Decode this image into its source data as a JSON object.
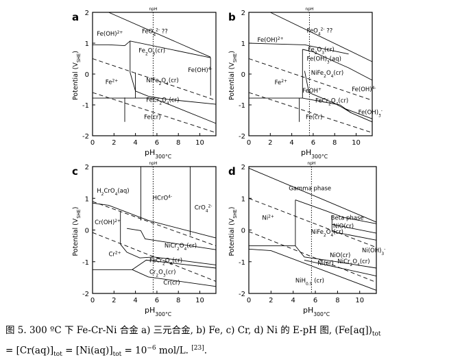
{
  "chart_data": [
    {
      "type": "line",
      "panel_label": "a",
      "xlabel": "pH",
      "xlabel_sub": "300°C",
      "ylabel": "Potential (V",
      "ylabel_sub": "SHE",
      "ylabel_tail": ")",
      "xlim": [
        0,
        11.5
      ],
      "ylim": [
        -2,
        2
      ],
      "xticks": [
        0,
        2,
        4,
        6,
        8,
        10
      ],
      "yticks": [
        -2,
        -1,
        0,
        1,
        2
      ],
      "vline": {
        "x": 5.65,
        "label": "npH"
      },
      "series": [
        {
          "style": "dashed",
          "points": [
            [
              0,
              0.5
            ],
            [
              11.5,
              -0.85
            ]
          ]
        },
        {
          "style": "dashed",
          "points": [
            [
              0,
              -0.6
            ],
            [
              11.5,
              -1.9
            ]
          ]
        },
        {
          "style": "solid",
          "points": [
            [
              1.5,
              2
            ],
            [
              11,
              0.55
            ]
          ]
        },
        {
          "style": "solid",
          "points": [
            [
              0,
              0.95
            ],
            [
              1.5,
              0.95
            ],
            [
              3,
              0.92
            ],
            [
              3.5,
              1.07
            ],
            [
              11,
              0.53
            ]
          ]
        },
        {
          "style": "solid",
          "points": [
            [
              3.5,
              1.07
            ],
            [
              3.5,
              0.05
            ],
            [
              4,
              -0.55
            ],
            [
              5.2,
              -0.72
            ],
            [
              7,
              -0.82
            ],
            [
              11.5,
              -0.98
            ]
          ]
        },
        {
          "style": "solid",
          "points": [
            [
              0,
              -0.78
            ],
            [
              5.6,
              -0.78
            ],
            [
              7,
              -0.97
            ],
            [
              11.5,
              -1.6
            ]
          ]
        },
        {
          "style": "solid",
          "points": [
            [
              4,
              0.05
            ],
            [
              4,
              -0.78
            ]
          ]
        },
        {
          "style": "solid",
          "points": [
            [
              3,
              -0.76
            ],
            [
              3,
              -1.55
            ]
          ]
        },
        {
          "style": "solid",
          "points": [
            [
              11,
              0.53
            ],
            [
              11,
              -0.7
            ]
          ]
        }
      ],
      "labels": [
        {
          "text": "Fe(OH)",
          "sub": "",
          "sup": "2+",
          "pre": "",
          "x": 0.4,
          "y": 1.25
        },
        {
          "text": "FeO",
          "sub": "4",
          "sup": "2-",
          "post": " ??",
          "x": 4.6,
          "y": 1.32
        },
        {
          "text": "Fe",
          "sub": "2",
          "mid": "O",
          "sub2": "3",
          "post": "(cr)",
          "x": 4.3,
          "y": 0.7
        },
        {
          "text": "Fe(OH)",
          "sub": "",
          "sup": "4-",
          "x": 8.9,
          "y": 0.07
        },
        {
          "text": "Fe",
          "sup": "2+",
          "x": 1.2,
          "y": -0.32
        },
        {
          "text": "NiFe",
          "sub": "2",
          "mid": "O",
          "sub2": "4",
          "post": "(cr)",
          "x": 5.0,
          "y": -0.27
        },
        {
          "text": "FeCr",
          "sub": "2",
          "mid": "O",
          "sub2": "4",
          "post": "(cr)",
          "x": 5.0,
          "y": -0.9
        },
        {
          "text": "Fe(cr)",
          "x": 4.8,
          "y": -1.45
        }
      ]
    },
    {
      "type": "line",
      "panel_label": "b",
      "xlabel": "pH",
      "xlabel_sub": "300°C",
      "ylabel": "Potential (V",
      "ylabel_sub": "SHE",
      "ylabel_tail": ")",
      "xlim": [
        0,
        11.5
      ],
      "ylim": [
        -2,
        2
      ],
      "xticks": [
        0,
        2,
        4,
        6,
        8,
        10
      ],
      "yticks": [
        -2,
        -1,
        0,
        1,
        2
      ],
      "vline": {
        "x": 5.65,
        "label": "npH"
      },
      "series": [
        {
          "style": "dashed",
          "points": [
            [
              0,
              0.5
            ],
            [
              11.5,
              -0.85
            ]
          ]
        },
        {
          "style": "dashed",
          "points": [
            [
              0,
              -0.6
            ],
            [
              11.5,
              -1.9
            ]
          ]
        },
        {
          "style": "solid",
          "points": [
            [
              2,
              2
            ],
            [
              11.5,
              0.4
            ]
          ]
        },
        {
          "style": "solid",
          "points": [
            [
              0,
              1.0
            ],
            [
              5,
              0.95
            ],
            [
              5.2,
              0.95
            ],
            [
              9.3,
              0.65
            ]
          ]
        },
        {
          "style": "solid",
          "points": [
            [
              5,
              0.8
            ],
            [
              5,
              -0.78
            ]
          ]
        },
        {
          "style": "solid",
          "points": [
            [
              5,
              0.8
            ],
            [
              6,
              0.72
            ],
            [
              8,
              0.4
            ],
            [
              9.3,
              0.2
            ],
            [
              11.5,
              -0.2
            ]
          ]
        },
        {
          "style": "solid",
          "points": [
            [
              5.2,
              0.1
            ],
            [
              5.6,
              -0.6
            ],
            [
              8,
              -0.95
            ],
            [
              8.8,
              -1.1
            ],
            [
              11.5,
              -1.45
            ]
          ]
        },
        {
          "style": "solid",
          "points": [
            [
              0,
              -0.78
            ],
            [
              5,
              -0.78
            ],
            [
              8.5,
              -1.0
            ],
            [
              9.5,
              -1.25
            ],
            [
              11.5,
              -1.55
            ]
          ]
        },
        {
          "style": "solid",
          "points": [
            [
              8.8,
              -1.1
            ],
            [
              9.5,
              -1.25
            ]
          ]
        },
        {
          "style": "solid",
          "points": [
            [
              4.7,
              -0.78
            ],
            [
              4.7,
              -1.55
            ]
          ]
        }
      ],
      "labels": [
        {
          "text": "FeO",
          "sub": "4",
          "sup": "2-",
          "post": " ??",
          "x": 5.4,
          "y": 1.35
        },
        {
          "text": "Fe(OH)",
          "sup": "2+",
          "x": 0.8,
          "y": 1.05
        },
        {
          "text": "Fe",
          "sub": "2",
          "mid": "O",
          "sub2": "3",
          "post": "(cr)",
          "x": 5.5,
          "y": 0.73
        },
        {
          "text": "Fe(OH)",
          "sub": "3",
          "post": "(aq)",
          "x": 5.4,
          "y": 0.43
        },
        {
          "text": "NiFe",
          "sub": "2",
          "mid": "O",
          "sub2": "4",
          "post": "(cr)",
          "x": 5.8,
          "y": -0.02
        },
        {
          "text": "Fe",
          "sup": "2+",
          "x": 2.4,
          "y": -0.33
        },
        {
          "text": "Fe(OH)",
          "sup": "4-",
          "x": 9.6,
          "y": -0.55
        },
        {
          "text": "FeOH",
          "sup": "+",
          "x": 5.0,
          "y": -0.6
        },
        {
          "text": "FeCr",
          "sub": "2",
          "mid": "O",
          "sub2": "4",
          "post": "(cr)",
          "x": 6.2,
          "y": -0.92
        },
        {
          "text": "Fe(OH)",
          "sub": "3",
          "sup": "-",
          "x": 10.2,
          "y": -1.3
        },
        {
          "text": "Fe(cr)",
          "x": 5.3,
          "y": -1.45
        }
      ]
    },
    {
      "type": "line",
      "panel_label": "c",
      "xlabel": "pH",
      "xlabel_sub": "300°C",
      "ylabel": "Potential (V",
      "ylabel_sub": "SHE",
      "ylabel_tail": ")",
      "xlim": [
        0,
        11.5
      ],
      "ylim": [
        -2,
        2
      ],
      "xticks": [
        0,
        2,
        4,
        6,
        8,
        10
      ],
      "yticks": [
        -2,
        -1,
        0,
        1,
        2
      ],
      "vline": {
        "x": 5.65,
        "label": "npH"
      },
      "series": [
        {
          "style": "dashed",
          "points": [
            [
              0,
              0.9
            ],
            [
              11.5,
              -0.5
            ]
          ]
        },
        {
          "style": "dashed",
          "points": [
            [
              0,
              -0.08
            ],
            [
              11.5,
              -1.62
            ]
          ]
        },
        {
          "style": "solid",
          "points": [
            [
              0,
              0.85
            ],
            [
              1.5,
              0.78
            ],
            [
              5.2,
              0.3
            ],
            [
              11.5,
              -0.25
            ]
          ]
        },
        {
          "style": "solid",
          "points": [
            [
              4.5,
              2
            ],
            [
              4.5,
              0.3
            ]
          ]
        },
        {
          "style": "solid",
          "points": [
            [
              9.1,
              2
            ],
            [
              9.1,
              -0.17
            ]
          ]
        },
        {
          "style": "solid",
          "points": [
            [
              2.6,
              0.6
            ],
            [
              2.6,
              -0.45
            ]
          ]
        },
        {
          "style": "solid",
          "points": [
            [
              2.6,
              -0.45
            ],
            [
              3.2,
              -0.7
            ],
            [
              4.4,
              -0.88
            ],
            [
              5.7,
              -0.85
            ],
            [
              11.5,
              -1.1
            ]
          ]
        },
        {
          "style": "solid",
          "points": [
            [
              3.2,
              0.05
            ],
            [
              4.5,
              -0.02
            ],
            [
              4.9,
              -0.28
            ],
            [
              11.5,
              -0.62
            ]
          ]
        },
        {
          "style": "solid",
          "points": [
            [
              0,
              -1.25
            ],
            [
              3.7,
              -1.25
            ],
            [
              5,
              -0.95
            ],
            [
              11.5,
              -1.2
            ]
          ]
        },
        {
          "style": "solid",
          "points": [
            [
              3.7,
              -1.25
            ],
            [
              5.2,
              -1.48
            ],
            [
              11.5,
              -1.78
            ]
          ]
        },
        {
          "style": "solid",
          "points": [
            [
              2.6,
              -1.25
            ],
            [
              2.6,
              -1.25
            ]
          ]
        }
      ],
      "labels": [
        {
          "text": "H",
          "sub": "2",
          "mid": "CrO",
          "sub2": "4",
          "post": "(aq)",
          "x": 0.4,
          "y": 1.18
        },
        {
          "text": "HCrO",
          "sup": "4-",
          "x": 5.6,
          "y": 0.95
        },
        {
          "text": "CrO",
          "sub": "4",
          "sup": "2-",
          "x": 9.5,
          "y": 0.65
        },
        {
          "text": "Cr(OH)",
          "sup": "2+",
          "x": 0.2,
          "y": 0.18
        },
        {
          "text": "NiCr",
          "sub": "2",
          "mid": "O",
          "sub2": "4",
          "post": "(cr)",
          "x": 6.7,
          "y": -0.55
        },
        {
          "text": "Cr",
          "sup": "2+",
          "x": 1.5,
          "y": -0.82
        },
        {
          "text": "FeCr",
          "sub": "2",
          "mid": "O",
          "sub2": "4",
          "post": "(cr)",
          "x": 5.3,
          "y": -1.02
        },
        {
          "text": "Cr",
          "sub": "2",
          "mid": "O",
          "sub2": "3",
          "post": "(cr)",
          "x": 5.3,
          "y": -1.38
        },
        {
          "text": "Cr(cr)",
          "x": 6.6,
          "y": -1.72
        }
      ]
    },
    {
      "type": "line",
      "panel_label": "d",
      "xlabel": "pH",
      "xlabel_sub": "300°C",
      "ylabel": "Potential (V",
      "ylabel_sub": "SHE",
      "ylabel_tail": ")",
      "xlim": [
        0,
        11.5
      ],
      "ylim": [
        -2,
        2
      ],
      "xticks": [
        0,
        2,
        4,
        6,
        8,
        10
      ],
      "yticks": [
        -2,
        -1,
        0,
        1,
        2
      ],
      "vline": {
        "x": 5.65,
        "label": "npH"
      },
      "series": [
        {
          "style": "dashed",
          "points": [
            [
              0,
              1.0
            ],
            [
              11.5,
              -0.55
            ]
          ]
        },
        {
          "style": "dashed",
          "points": [
            [
              0,
              -0.05
            ],
            [
              11.5,
              -1.65
            ]
          ]
        },
        {
          "style": "solid",
          "points": [
            [
              0,
              1.95
            ],
            [
              11.5,
              0.25
            ]
          ]
        },
        {
          "style": "solid",
          "points": [
            [
              4.2,
              0.95
            ],
            [
              7,
              0.6
            ],
            [
              8.5,
              0.4
            ],
            [
              11.5,
              0.2
            ]
          ]
        },
        {
          "style": "solid",
          "points": [
            [
              4.2,
              0.95
            ],
            [
              4.2,
              -0.5
            ],
            [
              5,
              -0.85
            ],
            [
              7,
              -0.95
            ],
            [
              11.5,
              -1.2
            ]
          ]
        },
        {
          "style": "solid",
          "points": [
            [
              7.5,
              0.45
            ],
            [
              7.5,
              -0.05
            ]
          ]
        },
        {
          "style": "solid",
          "points": [
            [
              7.5,
              0.18
            ],
            [
              11.5,
              -0.1
            ]
          ]
        },
        {
          "style": "solid",
          "points": [
            [
              7.5,
              -0.05
            ],
            [
              11.5,
              -0.32
            ]
          ]
        },
        {
          "style": "solid",
          "points": [
            [
              0,
              -0.5
            ],
            [
              4.2,
              -0.5
            ]
          ]
        },
        {
          "style": "solid",
          "points": [
            [
              5,
              -0.95
            ],
            [
              11.5,
              -1.45
            ]
          ]
        },
        {
          "style": "solid",
          "points": [
            [
              0,
              -0.6
            ],
            [
              2,
              -0.65
            ],
            [
              11.5,
              -1.9
            ]
          ]
        },
        {
          "style": "solid",
          "points": [
            [
              11.5,
              0.2
            ],
            [
              11.5,
              -1.9
            ]
          ]
        }
      ],
      "labels": [
        {
          "text": "Gamma phase",
          "x": 3.6,
          "y": 1.25
        },
        {
          "text": "Ni",
          "sup": "2+",
          "x": 1.2,
          "y": 0.32
        },
        {
          "text": "Beta phase",
          "x": 7.4,
          "y": 0.32
        },
        {
          "text": "NiO(cr)",
          "x": 7.6,
          "y": 0.07
        },
        {
          "text": "NiFe",
          "sub": "2",
          "mid": "O",
          "sub2": "4",
          "post": "(cr)",
          "x": 5.6,
          "y": -0.12
        },
        {
          "text": "Ni(OH)",
          "sub": "3",
          "sup": "-",
          "x": 10.2,
          "y": -0.7
        },
        {
          "text": "NiO(cr)",
          "x": 7.3,
          "y": -0.85
        },
        {
          "text": "NiCr",
          "sub": "2",
          "mid": "O",
          "sub2": "4",
          "post": "(cr)",
          "x": 8.0,
          "y": -1.05
        },
        {
          "text": "Ni(cr)",
          "x": 6.2,
          "y": -1.1
        },
        {
          "text": "NiH",
          "sub": "0.5",
          "post": " (cr)",
          "x": 4.2,
          "y": -1.65
        }
      ]
    }
  ],
  "caption": {
    "part1": "图 5. 300 ºC 下 Fe-Cr-Ni 合金  a)  三元合金, b) Fe, c) Cr, d) Ni 的 E-pH 图, (Fe[aq])",
    "sub1": "tot",
    "part2": "= [Cr(aq)]",
    "sub2": "tot",
    "part3": " = [Ni(aq)]",
    "sub3": "tot",
    "part4": " = 10",
    "sup1": "−6",
    "part5": " mol/L. ",
    "sup2": "[23]",
    "part6": "."
  }
}
